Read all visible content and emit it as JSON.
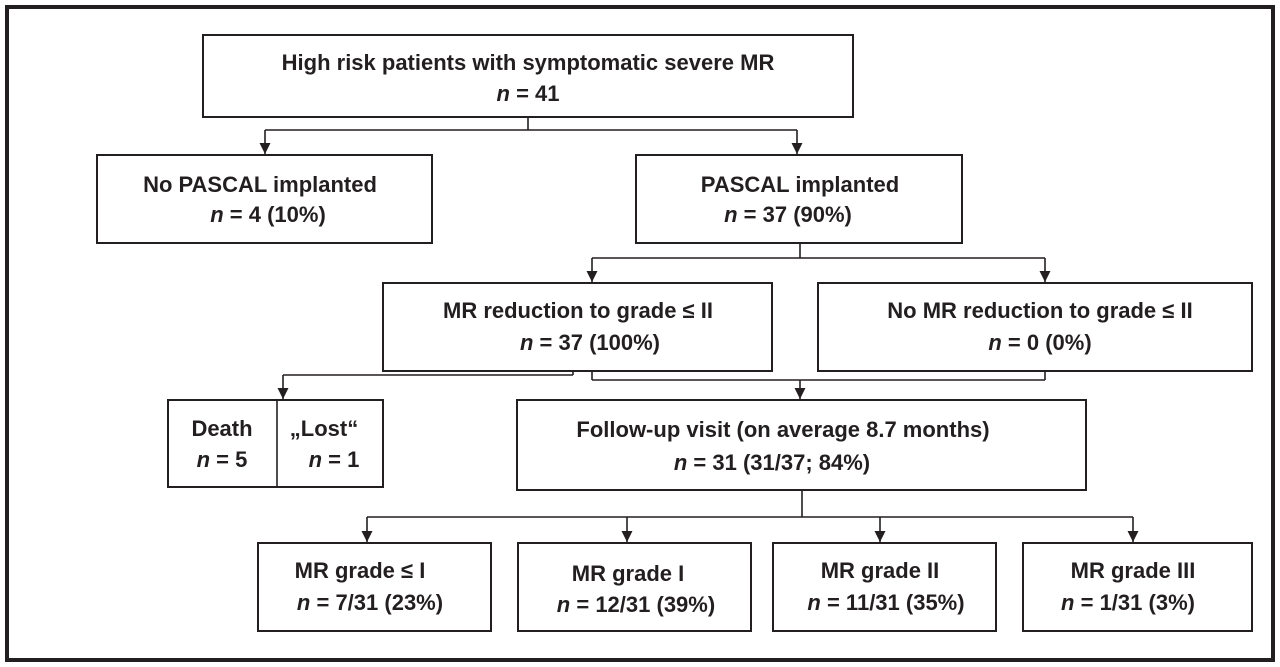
{
  "nodes": [
    {
      "label": "High risk patients with symptomatic severe MR",
      "count": "n = 41"
    },
    {
      "label": "No PASCAL implanted",
      "count": "n = 4 (10%)"
    },
    {
      "label": "PASCAL implanted",
      "count": "n = 37 (90%)"
    },
    {
      "label": "MR reduction to grade ≤ II",
      "count": "n = 37 (100%)"
    },
    {
      "label": "No MR reduction to grade ≤ II",
      "count": "n = 0 (0%)"
    },
    {
      "label": "Death",
      "count": "n = 5"
    },
    {
      "label": "„Lost“",
      "count": "n = 1"
    },
    {
      "label": "Follow-up visit (on average 8.7 months)",
      "count": "n = 31 (31/37; 84%)"
    },
    {
      "label": "MR grade ≤ I",
      "count": "n = 7/31 (23%)"
    },
    {
      "label": "MR grade I",
      "count": "n = 12/31 (39%)"
    },
    {
      "label": "MR grade II",
      "count": "n = 11/31 (35%)"
    },
    {
      "label": "MR grade III",
      "count": "n = 1/31 (3%)"
    }
  ]
}
